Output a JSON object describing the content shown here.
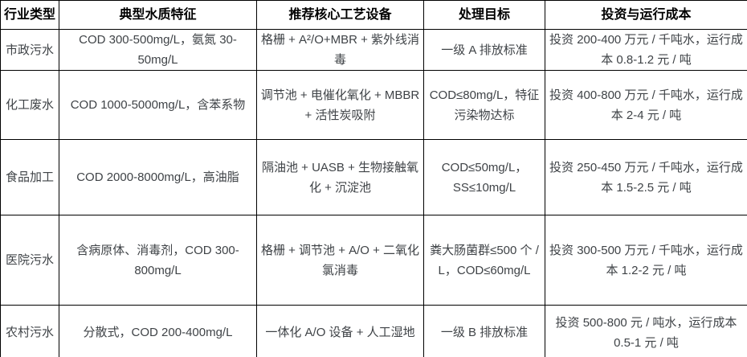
{
  "table": {
    "columns": [
      "行业类型",
      "典型水质特征",
      "推荐核心工艺设备",
      "处理目标",
      "投资与运行成本"
    ],
    "rows": [
      {
        "industry": "市政污水",
        "quality": "COD 300-500mg/L，氨氮 30-50mg/L",
        "process": "格栅 + A²/O+MBR + 紫外线消毒",
        "target": "一级 A 排放标准",
        "cost": "投资 200-400 万元 / 千吨水，运行成本 0.8-1.2 元 / 吨"
      },
      {
        "industry": "化工废水",
        "quality": "COD 1000-5000mg/L，含苯系物",
        "process": "调节池 + 电催化氧化 + MBBR + 活性炭吸附",
        "target": "COD≤80mg/L，特征污染物达标",
        "cost": "投资 400-800 万元 / 千吨水，运行成本 2-4 元 / 吨"
      },
      {
        "industry": "食品加工",
        "quality": "COD 2000-8000mg/L，高油脂",
        "process": "隔油池 + UASB + 生物接触氧化 + 沉淀池",
        "target": "COD≤50mg/L，SS≤10mg/L",
        "cost": "投资 250-450 万元 / 千吨水，运行成本 1.5-2.5 元 / 吨"
      },
      {
        "industry": "医院污水",
        "quality": "含病原体、消毒剂，COD 300-800mg/L",
        "process": "格栅 + 调节池 + A/O + 二氧化氯消毒",
        "target": "粪大肠菌群≤500 个 / L，COD≤60mg/L",
        "cost": "投资 300-500 万元 / 千吨水，运行成本 1.2-2 元 / 吨"
      },
      {
        "industry": "农村污水",
        "quality": "分散式，COD 200-400mg/L",
        "process": "一体化 A/O 设备 + 人工湿地",
        "target": "一级 B 排放标准",
        "cost": "投资 500-800 元 / 吨水，运行成本 0.5-1 元 / 吨"
      }
    ]
  },
  "colors": {
    "border": "#000000",
    "header_text": "#000000",
    "body_text": "#3f4347",
    "background": "#ffffff"
  }
}
